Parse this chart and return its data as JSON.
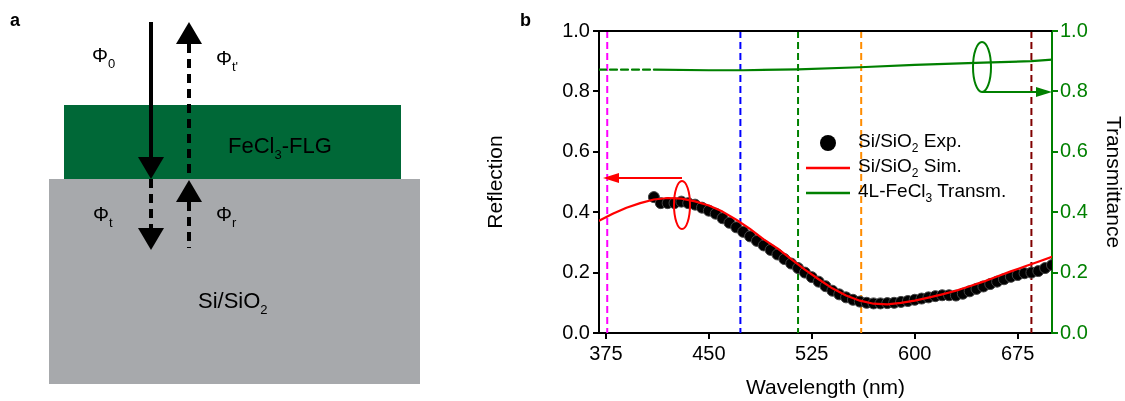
{
  "chart_data": [
    {
      "type": "other",
      "title": "a",
      "annotations": [
        "Φ$_{0}$",
        "Φ$_{t'}$",
        "FeCl$_{3}$-FLG",
        "Φ$_{t}$",
        "Φ$_{r}$",
        "Si/SiO$_{2}$"
      ]
    },
    {
      "type": "line",
      "title": "b",
      "xlabel": "Wavelength (nm)",
      "ylabel": "Reflection",
      "y2label": "Transmittance",
      "xlim": [
        370,
        700
      ],
      "xticks": [
        375,
        450,
        525,
        600,
        675
      ],
      "ylim": [
        0,
        1
      ],
      "yticks": [
        {
          "value": 0,
          "label": "0.0"
        },
        0.2,
        0.4,
        0.6,
        0.8,
        {
          "value": 1,
          "label": "1.0"
        }
      ],
      "y2lim": [
        0,
        1
      ],
      "y2ticks": [
        {
          "value": 0,
          "label": "0.0"
        },
        0.2,
        0.4,
        0.6,
        0.8,
        {
          "value": 1,
          "label": "1.0"
        }
      ],
      "legend": "right",
      "series": [
        {
          "name": "Si/SiO$_{2}$ Exp.",
          "type": "scatter",
          "marker": "circle",
          "color": "#000000",
          "x": [
            410,
            415,
            420,
            425,
            430,
            435,
            440,
            445,
            450,
            455,
            460,
            465,
            470,
            475,
            480,
            485,
            490,
            495,
            500,
            505,
            510,
            515,
            520,
            525,
            530,
            535,
            540,
            545,
            550,
            555,
            560,
            565,
            570,
            575,
            580,
            585,
            590,
            595,
            600,
            605,
            610,
            615,
            620,
            625,
            630,
            635,
            640,
            645,
            650,
            655,
            660,
            665,
            670,
            675,
            680,
            685,
            690,
            695,
            700
          ],
          "values": [
            0.45,
            0.43,
            0.43,
            0.43,
            0.435,
            0.43,
            0.425,
            0.415,
            0.405,
            0.395,
            0.38,
            0.365,
            0.35,
            0.335,
            0.32,
            0.305,
            0.29,
            0.275,
            0.26,
            0.245,
            0.23,
            0.215,
            0.2,
            0.185,
            0.17,
            0.155,
            0.14,
            0.128,
            0.118,
            0.11,
            0.104,
            0.1,
            0.098,
            0.098,
            0.099,
            0.1,
            0.103,
            0.106,
            0.11,
            0.114,
            0.118,
            0.122,
            0.125,
            0.125,
            0.124,
            0.13,
            0.138,
            0.146,
            0.154,
            0.162,
            0.17,
            0.178,
            0.186,
            0.192,
            0.198,
            0.2,
            0.205,
            0.215,
            0.225
          ]
        },
        {
          "name": "Si/SiO$_{2}$ Sim.",
          "type": "line",
          "marker": "none",
          "line_style": "solid",
          "color": "#ff0000",
          "x": [
            370,
            380,
            390,
            400,
            410,
            420,
            430,
            440,
            450,
            460,
            470,
            480,
            490,
            500,
            510,
            520,
            530,
            540,
            550,
            560,
            570,
            580,
            590,
            600,
            610,
            620,
            630,
            640,
            650,
            660,
            670,
            680,
            690,
            700
          ],
          "values": [
            0.372,
            0.395,
            0.415,
            0.43,
            0.442,
            0.447,
            0.445,
            0.436,
            0.422,
            0.402,
            0.375,
            0.345,
            0.31,
            0.28,
            0.245,
            0.21,
            0.178,
            0.148,
            0.124,
            0.107,
            0.097,
            0.095,
            0.1,
            0.107,
            0.117,
            0.128,
            0.14,
            0.155,
            0.17,
            0.187,
            0.204,
            0.22,
            0.236,
            0.252
          ]
        },
        {
          "name": "4L-FeCl$_{3}$ Transm.",
          "type": "line",
          "marker": "none",
          "line_style": "solid",
          "axis": "y2",
          "color": "#008000",
          "x": [
            410,
            450,
            475,
            515,
            560,
            600,
            650,
            685,
            700
          ],
          "values": [
            0.872,
            0.87,
            0.87,
            0.873,
            0.88,
            0.888,
            0.895,
            0.9,
            0.905
          ]
        },
        {
          "type": "line",
          "marker": "none",
          "line_style": "dashed",
          "axis": "y2",
          "color": "#008000",
          "x": [
            370,
            410
          ],
          "values": [
            0.872,
            0.872
          ]
        }
      ],
      "ref_lines": [
        {
          "axis": "x",
          "value": 376,
          "color": "#ff00ff",
          "line_style": "dashed"
        },
        {
          "axis": "x",
          "value": 473,
          "color": "#0000ff",
          "line_style": "dashed"
        },
        {
          "axis": "x",
          "value": 515,
          "color": "#008000",
          "line_style": "dashed"
        },
        {
          "axis": "x",
          "value": 561,
          "color": "#ff8c00",
          "line_style": "dashed"
        },
        {
          "axis": "x",
          "value": 685,
          "color": "#800000",
          "line_style": "dashed"
        }
      ]
    }
  ]
}
